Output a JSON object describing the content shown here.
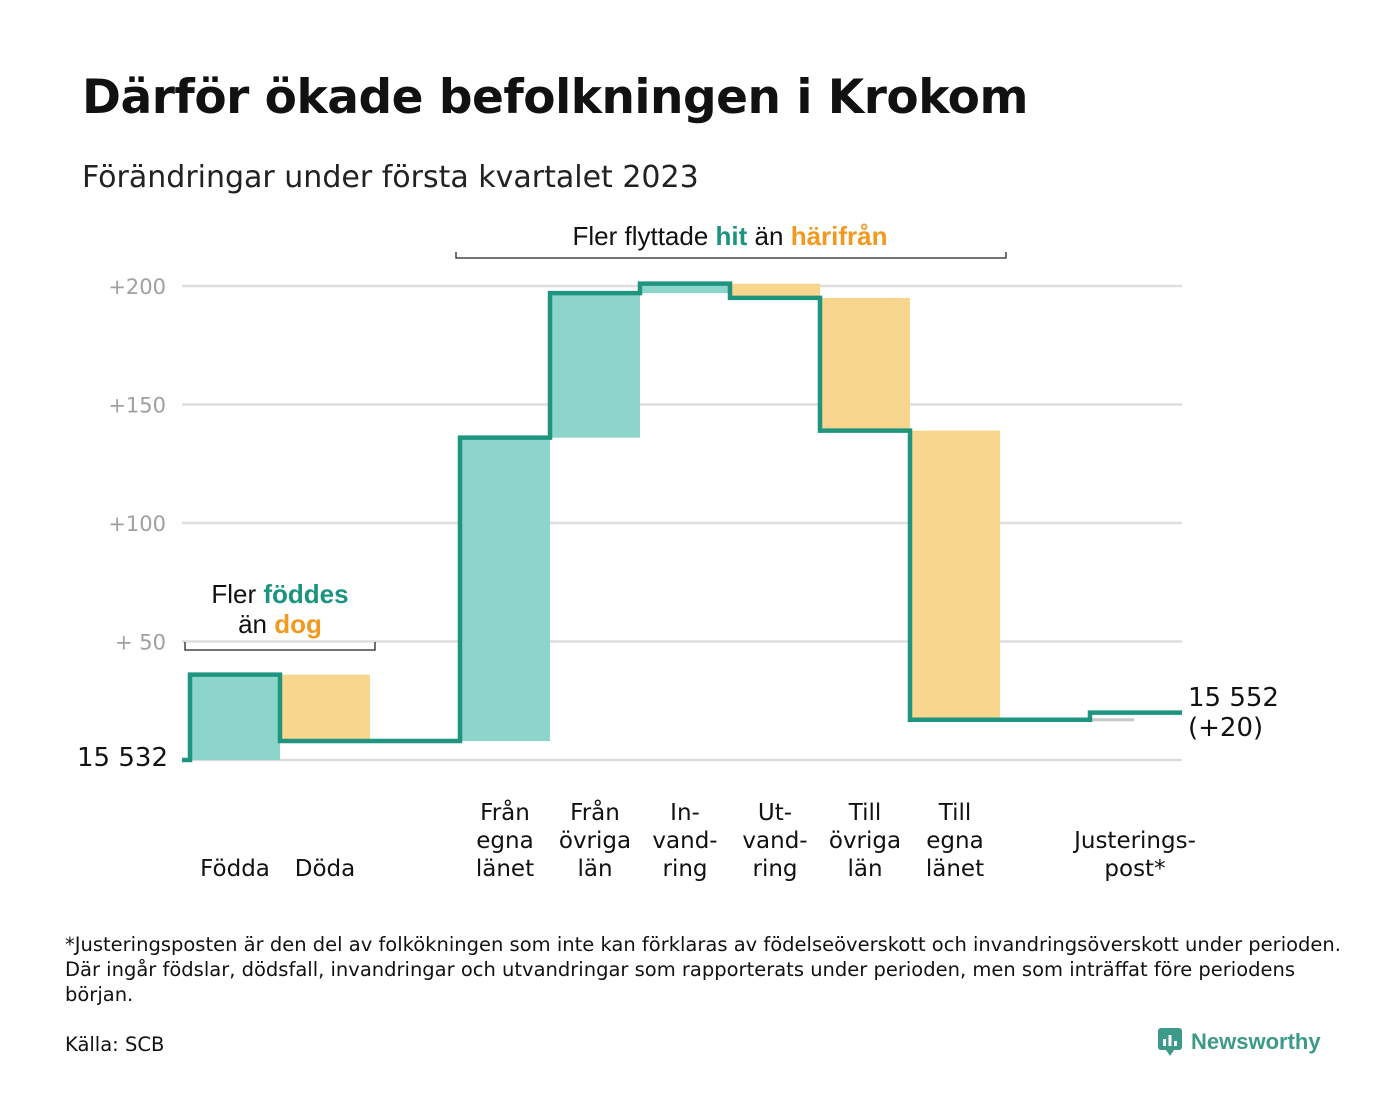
{
  "title": "Därför ökade befolkningen i Krokom",
  "subtitle": "Förändringar under första kvartalet 2023",
  "colors": {
    "increase": "#8dd5ca",
    "decrease": "#f9d68e",
    "line": "#1f9580",
    "adjustment": "#c8c8c8",
    "grid": "#dedede"
  },
  "chart_data": {
    "type": "waterfall",
    "start_value": 15532,
    "start_label": "15 532",
    "end_label": "15 552",
    "end_change_label": "(+20)",
    "y_axis_ticks": [
      {
        "value": 50,
        "label": "+ 50"
      },
      {
        "value": 100,
        "label": "+100"
      },
      {
        "value": 150,
        "label": "+150"
      },
      {
        "value": 200,
        "label": "+200"
      }
    ],
    "ylim": [
      0,
      200
    ],
    "categories": [
      {
        "label": [
          "Födda"
        ],
        "change": 36,
        "kind": "increase"
      },
      {
        "label": [
          "Döda"
        ],
        "change": -28,
        "kind": "decrease"
      },
      {
        "label": [],
        "change": 0,
        "kind": "spacer"
      },
      {
        "label": [
          "Från",
          "egna",
          "länet"
        ],
        "change": 128,
        "kind": "increase"
      },
      {
        "label": [
          "Från",
          "övriga",
          "län"
        ],
        "change": 61,
        "kind": "increase"
      },
      {
        "label": [
          "In-",
          "vand-",
          "ring"
        ],
        "change": 4,
        "kind": "increase"
      },
      {
        "label": [
          "Ut-",
          "vand-",
          "ring"
        ],
        "change": -6,
        "kind": "decrease"
      },
      {
        "label": [
          "Till",
          "övriga",
          "län"
        ],
        "change": -56,
        "kind": "decrease"
      },
      {
        "label": [
          "Till",
          "egna",
          "länet"
        ],
        "change": -122,
        "kind": "decrease"
      },
      {
        "label": [],
        "change": 0,
        "kind": "spacer"
      },
      {
        "label": [
          "Justerings-",
          "post*"
        ],
        "change": 3,
        "kind": "adjustment"
      }
    ],
    "annotations": {
      "births": {
        "line1_prefix": "Fler ",
        "line1_highlight": "föddes",
        "line2_prefix": "än ",
        "line2_highlight": "dog"
      },
      "migration": {
        "prefix": "Fler flyttade ",
        "highlight1": "hit",
        "middle": " än ",
        "highlight2": "härifrån"
      }
    }
  },
  "footnote": "*Justeringsposten är den del av folkökningen som inte kan förklaras av födelseöverskott och invandringsöverskott under perioden. Där ingår födslar, dödsfall, invandringar och utvandringar som rapporterats under perioden, men som inträffat före periodens början.",
  "source": "Källa: SCB",
  "brand": {
    "name": "Newsworthy",
    "icon": "newsworthy-logo-icon"
  }
}
